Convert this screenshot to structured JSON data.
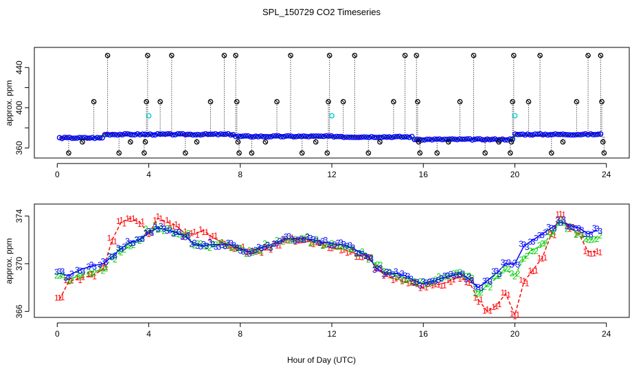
{
  "title": "SPL_150729  CO2 Timeseries",
  "xlabel": "Hour of Day (UTC)",
  "colors": {
    "red": "#ff0000",
    "green": "#00cc00",
    "blue": "#0000ff",
    "cyan": "#00cccc",
    "black": "#000000"
  },
  "chart_data": [
    {
      "type": "scatter",
      "ylabel": "approx. ppm",
      "xlim": [
        -1,
        25
      ],
      "ylim": [
        350,
        460
      ],
      "xticks": [
        "0",
        "4",
        "8",
        "12",
        "16",
        "20",
        "24"
      ],
      "yticks": [
        "360",
        "",
        "400",
        "",
        "440"
      ],
      "ytick_values": [
        360,
        380,
        400,
        420,
        440
      ],
      "spike_markers": [
        {
          "x": 0.5,
          "y": 355
        },
        {
          "x": 1.1,
          "y": 366
        },
        {
          "x": 1.6,
          "y": 406
        },
        {
          "x": 2.2,
          "y": 452
        },
        {
          "x": 2.7,
          "y": 355
        },
        {
          "x": 3.2,
          "y": 366
        },
        {
          "x": 3.8,
          "y": 355
        },
        {
          "x": 3.85,
          "y": 366
        },
        {
          "x": 3.9,
          "y": 406
        },
        {
          "x": 3.95,
          "y": 452
        },
        {
          "x": 4.5,
          "y": 406
        },
        {
          "x": 5.0,
          "y": 452
        },
        {
          "x": 5.6,
          "y": 355
        },
        {
          "x": 6.1,
          "y": 366
        },
        {
          "x": 6.7,
          "y": 406
        },
        {
          "x": 7.3,
          "y": 452
        },
        {
          "x": 7.8,
          "y": 452
        },
        {
          "x": 7.85,
          "y": 406
        },
        {
          "x": 7.9,
          "y": 366
        },
        {
          "x": 7.95,
          "y": 355
        },
        {
          "x": 8.5,
          "y": 355
        },
        {
          "x": 9.1,
          "y": 366
        },
        {
          "x": 9.6,
          "y": 406
        },
        {
          "x": 10.2,
          "y": 452
        },
        {
          "x": 10.7,
          "y": 355
        },
        {
          "x": 11.3,
          "y": 366
        },
        {
          "x": 11.8,
          "y": 355
        },
        {
          "x": 11.85,
          "y": 406
        },
        {
          "x": 11.9,
          "y": 452
        },
        {
          "x": 12.5,
          "y": 406
        },
        {
          "x": 13.0,
          "y": 452
        },
        {
          "x": 13.6,
          "y": 355
        },
        {
          "x": 14.1,
          "y": 366
        },
        {
          "x": 14.7,
          "y": 406
        },
        {
          "x": 15.2,
          "y": 452
        },
        {
          "x": 15.7,
          "y": 452
        },
        {
          "x": 15.75,
          "y": 406
        },
        {
          "x": 15.8,
          "y": 366
        },
        {
          "x": 15.85,
          "y": 355
        },
        {
          "x": 16.6,
          "y": 355
        },
        {
          "x": 17.1,
          "y": 366
        },
        {
          "x": 17.6,
          "y": 406
        },
        {
          "x": 18.2,
          "y": 452
        },
        {
          "x": 18.7,
          "y": 355
        },
        {
          "x": 19.3,
          "y": 366
        },
        {
          "x": 19.8,
          "y": 355
        },
        {
          "x": 19.85,
          "y": 366
        },
        {
          "x": 19.9,
          "y": 406
        },
        {
          "x": 19.95,
          "y": 452
        },
        {
          "x": 20.6,
          "y": 406
        },
        {
          "x": 21.1,
          "y": 452
        },
        {
          "x": 21.6,
          "y": 355
        },
        {
          "x": 22.1,
          "y": 366
        },
        {
          "x": 22.7,
          "y": 406
        },
        {
          "x": 23.2,
          "y": 452
        },
        {
          "x": 23.75,
          "y": 452
        },
        {
          "x": 23.8,
          "y": 406
        },
        {
          "x": 23.85,
          "y": 366
        },
        {
          "x": 23.9,
          "y": 355
        }
      ],
      "cyan_markers": [
        {
          "x": 4.0,
          "y": 392
        },
        {
          "x": 12.0,
          "y": 392
        },
        {
          "x": 20.0,
          "y": 392
        }
      ]
    },
    {
      "type": "line",
      "ylabel": "approx. ppm",
      "xlim": [
        -1,
        25
      ],
      "ylim": [
        365.5,
        375
      ],
      "xticks": [
        "0",
        "4",
        "8",
        "12",
        "16",
        "20",
        "24"
      ],
      "yticks": [
        "366",
        "370",
        "374"
      ],
      "ytick_values": [
        366,
        370,
        374
      ],
      "series": [
        {
          "name": "1",
          "label": "1"
        },
        {
          "name": "2",
          "label": "2"
        },
        {
          "name": "3",
          "label": "3"
        }
      ],
      "x": [
        0.1,
        0.5,
        1,
        1.5,
        2,
        2.4,
        2.8,
        3.2,
        3.6,
        4.0,
        4.4,
        4.8,
        5.2,
        5.6,
        6,
        6.4,
        6.8,
        7.2,
        7.6,
        8,
        8.4,
        8.8,
        9.2,
        9.6,
        10,
        10.4,
        10.8,
        11.2,
        11.6,
        12,
        12.4,
        12.8,
        13.2,
        13.6,
        14,
        14.4,
        14.8,
        15.2,
        15.6,
        16,
        16.4,
        16.8,
        17.2,
        17.6,
        18,
        18.4,
        18.8,
        19.2,
        19.6,
        20,
        20.4,
        20.8,
        21.2,
        21.6,
        22,
        22.4,
        22.8,
        23.2,
        23.6
      ],
      "series_values": {
        "1": [
          367.0,
          368.5,
          368.8,
          369.0,
          369.5,
          372.0,
          373.5,
          373.8,
          373.5,
          372.5,
          373.8,
          373.5,
          373.2,
          372.5,
          372.5,
          372.8,
          372.2,
          371.8,
          371.3,
          371.3,
          370.9,
          371.0,
          371.3,
          371.7,
          372.0,
          372.0,
          372.0,
          371.8,
          371.6,
          371.3,
          371.3,
          371.0,
          370.7,
          370.5,
          369.5,
          369.0,
          368.7,
          368.5,
          368.3,
          368.0,
          368.2,
          368.3,
          368.6,
          368.9,
          368.5,
          367.0,
          366.0,
          366.5,
          367.5,
          365.7,
          368.5,
          369.5,
          370.5,
          372.5,
          374.0,
          373.0,
          372.5,
          371.0,
          371.0
        ],
        "2": [
          369.0,
          368.7,
          369.0,
          369.3,
          369.5,
          370.5,
          371.0,
          371.5,
          372.0,
          372.8,
          373.0,
          372.8,
          372.6,
          372.4,
          371.7,
          371.5,
          371.5,
          371.6,
          371.5,
          371.3,
          371.0,
          371.2,
          371.5,
          371.8,
          372.0,
          372.1,
          372.1,
          371.9,
          371.6,
          371.6,
          371.5,
          371.3,
          371.0,
          370.5,
          369.8,
          369.3,
          369.0,
          368.8,
          368.5,
          368.4,
          368.5,
          368.8,
          369.0,
          369.2,
          368.8,
          367.5,
          368.2,
          368.8,
          369.5,
          369.0,
          370.5,
          371.2,
          371.5,
          372.5,
          373.5,
          373.0,
          372.5,
          372.0,
          372.2
        ],
        "3": [
          369.2,
          369.0,
          369.5,
          369.8,
          370.0,
          370.6,
          371.3,
          371.8,
          372.0,
          372.6,
          373.0,
          372.8,
          372.6,
          372.3,
          371.6,
          371.5,
          371.6,
          371.6,
          371.6,
          371.2,
          371.0,
          371.3,
          371.5,
          371.8,
          372.1,
          372.1,
          372.1,
          372.0,
          371.8,
          371.7,
          371.6,
          371.4,
          371.0,
          370.6,
          369.5,
          369.2,
          369.2,
          369.0,
          368.6,
          368.3,
          368.5,
          368.8,
          369.0,
          369.2,
          368.7,
          368.0,
          368.6,
          369.2,
          370.0,
          370.0,
          371.5,
          372.0,
          372.5,
          373.0,
          373.5,
          373.2,
          373.0,
          372.5,
          372.8
        ]
      }
    }
  ]
}
